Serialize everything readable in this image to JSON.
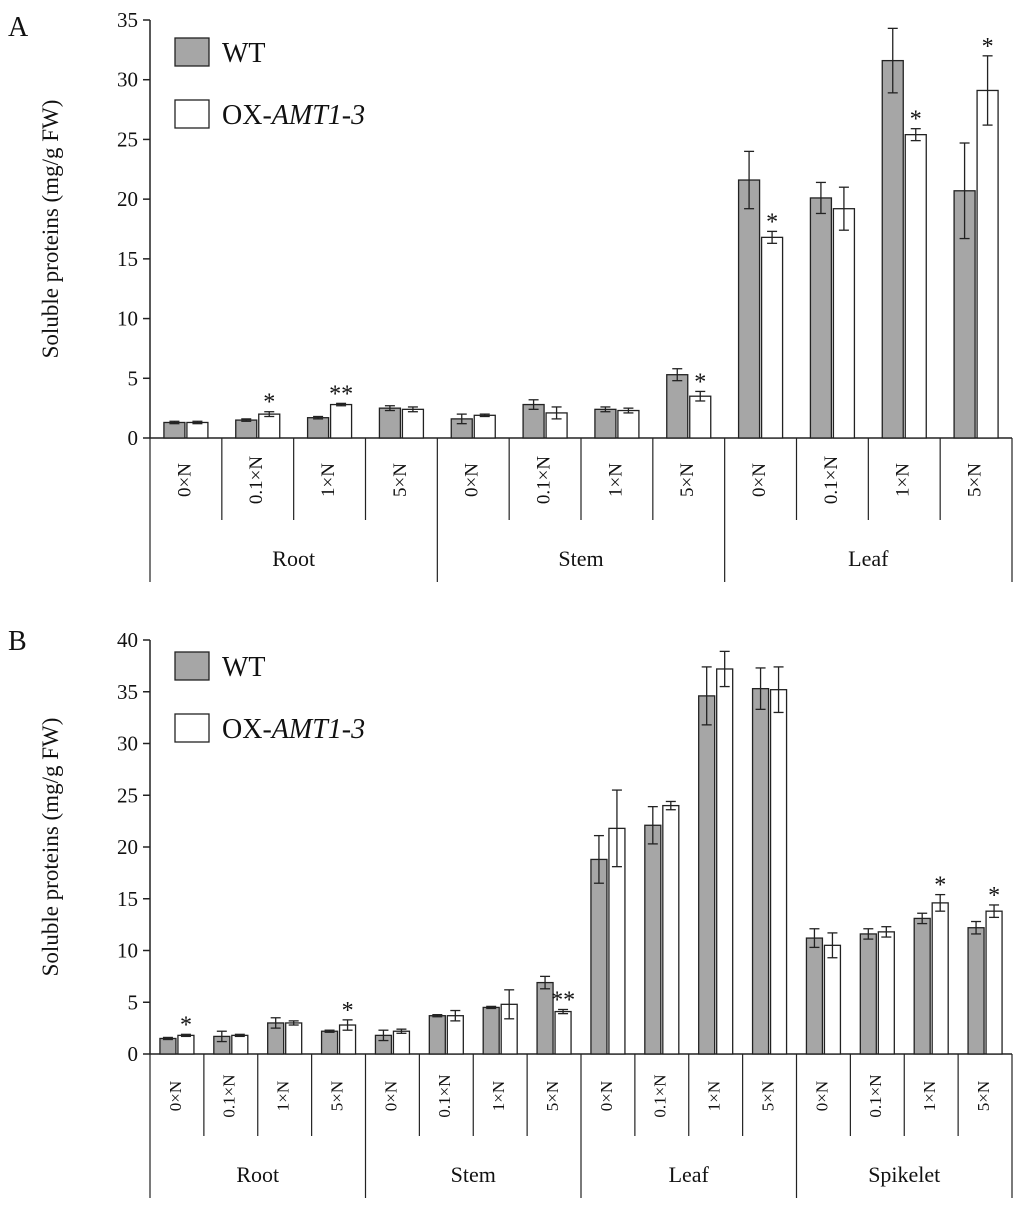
{
  "colors": {
    "wt": "#a6a6a6",
    "ox": "#ffffff",
    "axis": "#222222"
  },
  "chart_data": [
    {
      "type": "bar",
      "panel_label": "A",
      "ylabel": "Soluble proteins (mg/g FW)",
      "ylim": [
        0,
        35
      ],
      "yticks": [
        0,
        5,
        10,
        15,
        20,
        25,
        30,
        35
      ],
      "legend": {
        "placement": "top-left",
        "entries": [
          {
            "text": "WT",
            "italic": ""
          },
          {
            "text": "OX-",
            "italic": "AMT1-3"
          }
        ]
      },
      "groups": [
        {
          "name": "Root",
          "categories": [
            "0×N",
            "0.1×N",
            "1×N",
            "5×N"
          ]
        },
        {
          "name": "Stem",
          "categories": [
            "0×N",
            "0.1×N",
            "1×N",
            "5×N"
          ]
        },
        {
          "name": "Leaf",
          "categories": [
            "0×N",
            "0.1×N",
            "1×N",
            "5×N"
          ]
        }
      ],
      "series": [
        {
          "name": "WT",
          "values": [
            1.3,
            1.5,
            1.7,
            2.5,
            1.6,
            2.8,
            2.4,
            5.3,
            21.6,
            20.1,
            31.6,
            20.7
          ],
          "errors": [
            0.1,
            0.1,
            0.1,
            0.2,
            0.4,
            0.4,
            0.2,
            0.5,
            2.4,
            1.3,
            2.7,
            4.0
          ],
          "marks": [
            "",
            "",
            "",
            "",
            "",
            "",
            "",
            "",
            "",
            "",
            "",
            ""
          ]
        },
        {
          "name": "OX-AMT1-3",
          "values": [
            1.3,
            2.0,
            2.8,
            2.4,
            1.9,
            2.1,
            2.3,
            3.5,
            16.8,
            19.2,
            25.4,
            29.1
          ],
          "errors": [
            0.1,
            0.2,
            0.1,
            0.2,
            0.1,
            0.5,
            0.2,
            0.4,
            0.5,
            1.8,
            0.5,
            2.9
          ],
          "marks": [
            "",
            "*",
            "**",
            "",
            "",
            "",
            "",
            "*",
            "*",
            "",
            "*",
            "*"
          ]
        }
      ]
    },
    {
      "type": "bar",
      "panel_label": "B",
      "ylabel": "Soluble proteins (mg/g FW)",
      "ylim": [
        0,
        40
      ],
      "yticks": [
        0,
        5,
        10,
        15,
        20,
        25,
        30,
        35,
        40
      ],
      "legend": {
        "placement": "top-left",
        "entries": [
          {
            "text": "WT",
            "italic": ""
          },
          {
            "text": "OX-",
            "italic": "AMT1-3"
          }
        ]
      },
      "groups": [
        {
          "name": "Root",
          "categories": [
            "0×N",
            "0.1×N",
            "1×N",
            "5×N"
          ]
        },
        {
          "name": "Stem",
          "categories": [
            "0×N",
            "0.1×N",
            "1×N",
            "5×N"
          ]
        },
        {
          "name": "Leaf",
          "categories": [
            "0×N",
            "0.1×N",
            "1×N",
            "5×N"
          ]
        },
        {
          "name": "Spikelet",
          "categories": [
            "0×N",
            "0.1×N",
            "1×N",
            "5×N"
          ]
        }
      ],
      "series": [
        {
          "name": "WT",
          "values": [
            1.5,
            1.7,
            3.0,
            2.2,
            1.8,
            3.7,
            4.5,
            6.9,
            18.8,
            22.1,
            34.6,
            35.3,
            11.2,
            11.6,
            13.1,
            12.2
          ],
          "errors": [
            0.1,
            0.5,
            0.5,
            0.1,
            0.5,
            0.1,
            0.1,
            0.6,
            2.3,
            1.8,
            2.8,
            2.0,
            0.9,
            0.5,
            0.5,
            0.6
          ],
          "marks": [
            "",
            "",
            "",
            "",
            "",
            "",
            "",
            "",
            "",
            "",
            "",
            "",
            "",
            "",
            "",
            ""
          ]
        },
        {
          "name": "OX-AMT1-3",
          "values": [
            1.8,
            1.8,
            3.0,
            2.8,
            2.2,
            3.7,
            4.8,
            4.1,
            21.8,
            24.0,
            37.2,
            35.2,
            10.5,
            11.8,
            14.6,
            13.8
          ],
          "errors": [
            0.1,
            0.1,
            0.2,
            0.5,
            0.2,
            0.5,
            1.4,
            0.2,
            3.7,
            0.4,
            1.7,
            2.2,
            1.2,
            0.5,
            0.8,
            0.6
          ],
          "marks": [
            "*",
            "",
            "",
            "*",
            "",
            "",
            "",
            "**",
            "",
            "",
            "",
            "",
            "",
            "",
            "*",
            "*"
          ]
        }
      ]
    }
  ]
}
